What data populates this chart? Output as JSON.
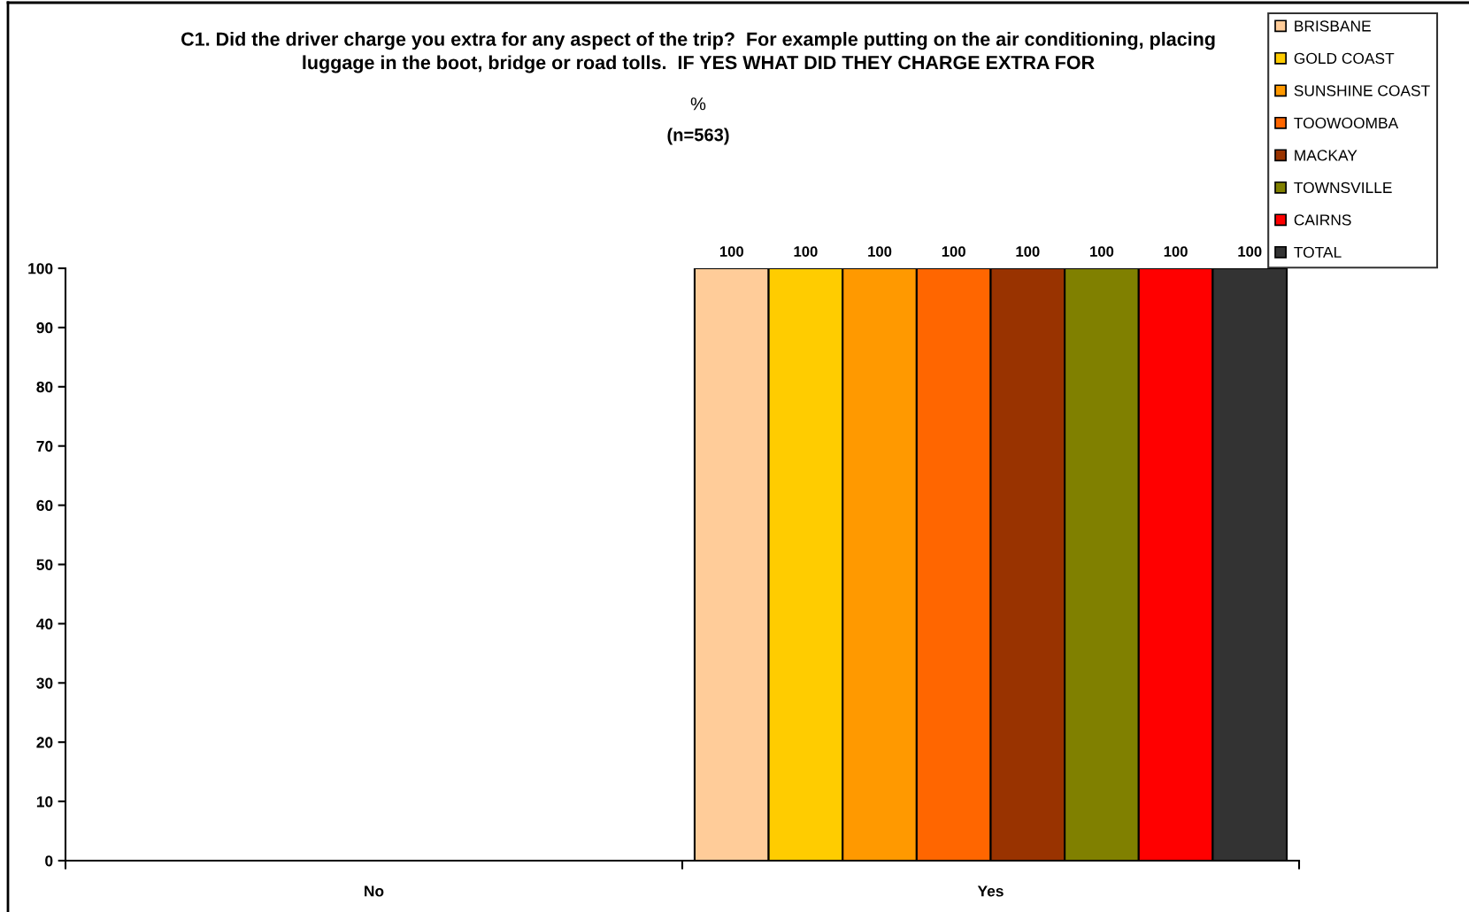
{
  "chart_data": {
    "type": "bar",
    "title": "C1. Did the driver charge you extra for any aspect of the trip?  For example putting on the air conditioning, placing\nluggage in the boot, bridge or road tolls.  IF YES WHAT DID THEY CHARGE EXTRA FOR",
    "subtitle": "%",
    "annotations": [
      "(n=563)"
    ],
    "categories": [
      "No",
      "Yes"
    ],
    "series": [
      {
        "name": "BRISBANE",
        "color": "#ffcc99",
        "values": [
          null,
          100
        ]
      },
      {
        "name": "GOLD COAST",
        "color": "#ffcc00",
        "values": [
          null,
          100
        ]
      },
      {
        "name": "SUNSHINE COAST",
        "color": "#ff9900",
        "values": [
          null,
          100
        ]
      },
      {
        "name": "TOOWOOMBA",
        "color": "#ff6600",
        "values": [
          null,
          100
        ]
      },
      {
        "name": "MACKAY",
        "color": "#993300",
        "values": [
          null,
          100
        ]
      },
      {
        "name": "TOWNSVILLE",
        "color": "#808000",
        "values": [
          null,
          100
        ]
      },
      {
        "name": "CAIRNS",
        "color": "#ff0000",
        "values": [
          null,
          100
        ]
      },
      {
        "name": "TOTAL",
        "color": "#333333",
        "values": [
          null,
          100
        ]
      }
    ],
    "ylim": [
      0,
      100
    ],
    "yticks": [
      0,
      10,
      20,
      30,
      40,
      50,
      60,
      70,
      80,
      90,
      100
    ],
    "data_labels": true,
    "legend": "top right",
    "grid": false
  }
}
